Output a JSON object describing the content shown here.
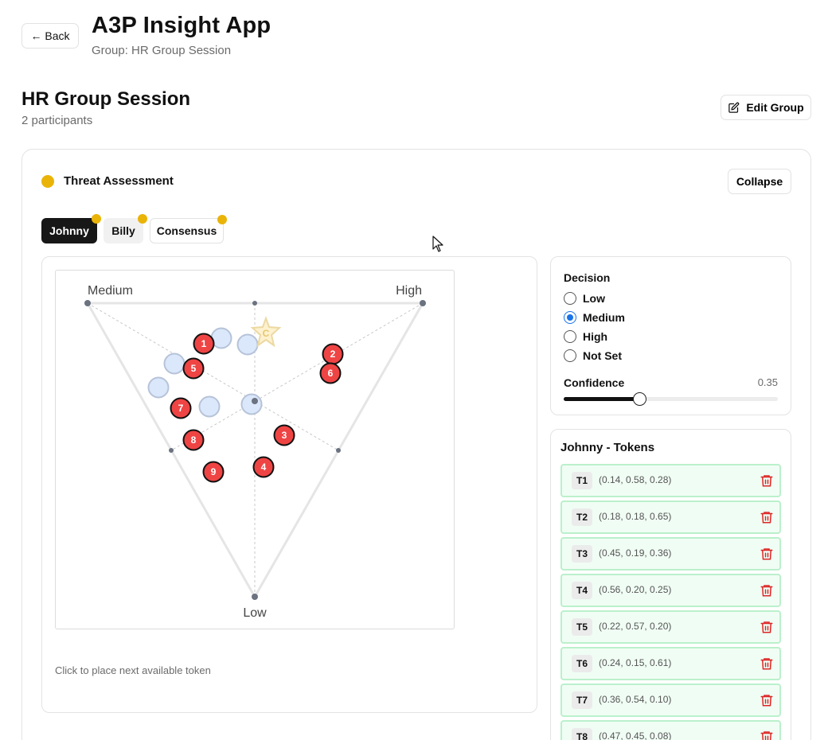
{
  "header": {
    "back_label": "← Back",
    "app_title": "A3P Insight App",
    "group_subtitle": "Group: HR Group Session"
  },
  "group": {
    "title": "HR Group Session",
    "participants": "2 participants",
    "edit_label": "Edit Group"
  },
  "section": {
    "title": "Threat Assessment",
    "status_color": "#eab308",
    "collapse_label": "Collapse"
  },
  "tabs": [
    {
      "label": "Johnny",
      "active": true
    },
    {
      "label": "Billy",
      "active": false
    },
    {
      "label": "Consensus",
      "active": false
    }
  ],
  "ternary": {
    "vertex_labels": {
      "top_left": "Medium",
      "top_right": "High",
      "bottom": "Low"
    },
    "consensus_marker": "C",
    "hint": "Click to place next available token"
  },
  "decision": {
    "label": "Decision",
    "options": [
      "Low",
      "Medium",
      "High",
      "Not Set"
    ],
    "selected": "Medium",
    "confidence_label": "Confidence",
    "confidence_value": "0.35",
    "confidence": 0.35
  },
  "tokens": {
    "title": "Johnny - Tokens",
    "items": [
      {
        "id": "T1",
        "coords": "(0.14, 0.58, 0.28)"
      },
      {
        "id": "T2",
        "coords": "(0.18, 0.18, 0.65)"
      },
      {
        "id": "T3",
        "coords": "(0.45, 0.19, 0.36)"
      },
      {
        "id": "T4",
        "coords": "(0.56, 0.20, 0.25)"
      },
      {
        "id": "T5",
        "coords": "(0.22, 0.57, 0.20)"
      },
      {
        "id": "T6",
        "coords": "(0.24, 0.15, 0.61)"
      },
      {
        "id": "T7",
        "coords": "(0.36, 0.54, 0.10)"
      },
      {
        "id": "T8",
        "coords": "(0.47, 0.45, 0.08)"
      }
    ]
  },
  "plot_markers": {
    "token_numbers": [
      "1",
      "2",
      "3",
      "4",
      "5",
      "6",
      "7",
      "8",
      "9"
    ],
    "token_color": "#ef4444",
    "other_color": "#dbe7fb"
  }
}
